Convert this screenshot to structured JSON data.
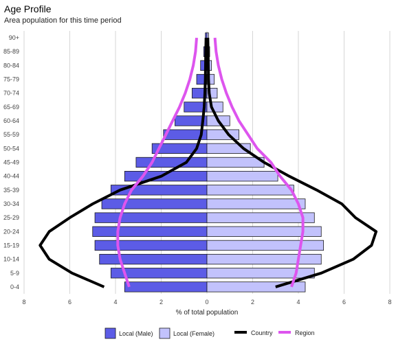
{
  "title": "Age Profile",
  "subtitle": "Area population for this time period",
  "chart_data": {
    "type": "bar",
    "orientation": "horizontal",
    "layout": "population-pyramid",
    "categories": [
      "0-4",
      "5-9",
      "10-14",
      "15-19",
      "20-24",
      "25-29",
      "30-34",
      "35-39",
      "40-44",
      "45-49",
      "50-54",
      "55-59",
      "60-64",
      "65-69",
      "70-74",
      "75-79",
      "80-84",
      "85-89",
      "90+"
    ],
    "xlabel": "% of total population",
    "xlim": [
      -8,
      8
    ],
    "xticks": [
      -8,
      -6,
      -4,
      -2,
      0,
      2,
      4,
      6,
      8
    ],
    "xtick_labels": [
      "8",
      "6",
      "4",
      "2",
      "0",
      "2",
      "4",
      "6",
      "8"
    ],
    "grid": true,
    "legend_position": "bottom",
    "series": [
      {
        "name": "Local (Male)",
        "kind": "bar",
        "side": "left",
        "color": "#5c5ce6",
        "values": [
          3.6,
          4.2,
          4.7,
          4.9,
          5.0,
          4.9,
          4.6,
          4.2,
          3.6,
          3.1,
          2.4,
          1.9,
          1.4,
          1.0,
          0.65,
          0.45,
          0.28,
          0.14,
          0.07
        ]
      },
      {
        "name": "Local (Female)",
        "kind": "bar",
        "side": "right",
        "color": "#c2c2fc",
        "values": [
          4.3,
          4.7,
          5.0,
          5.1,
          5.0,
          4.7,
          4.3,
          3.8,
          3.1,
          2.5,
          1.9,
          1.4,
          1.0,
          0.7,
          0.45,
          0.32,
          0.2,
          0.12,
          0.07
        ]
      },
      {
        "name": "Country",
        "kind": "line",
        "color": "#000000",
        "left": [
          4.5,
          5.9,
          6.9,
          7.3,
          6.9,
          6.0,
          5.0,
          3.8,
          2.0,
          0.9,
          0.45,
          0.25,
          0.18,
          0.12,
          0.09,
          0.07,
          0.06,
          0.05,
          0.04
        ],
        "right": [
          3.0,
          5.0,
          6.4,
          7.2,
          7.4,
          6.5,
          5.9,
          4.8,
          3.6,
          2.5,
          1.6,
          0.95,
          0.5,
          0.2,
          0.1,
          0.07,
          0.06,
          0.05,
          0.04
        ]
      },
      {
        "name": "Region",
        "kind": "line",
        "color": "#dd55ee",
        "left": [
          3.4,
          3.6,
          3.8,
          3.9,
          3.9,
          3.8,
          3.6,
          3.3,
          2.8,
          2.4,
          2.1,
          1.8,
          1.5,
          1.2,
          0.95,
          0.75,
          0.6,
          0.5,
          0.45
        ],
        "right": [
          3.7,
          3.9,
          4.0,
          4.1,
          4.2,
          4.2,
          4.0,
          3.7,
          3.2,
          2.8,
          2.2,
          1.8,
          1.4,
          1.1,
          0.85,
          0.65,
          0.5,
          0.4,
          0.35
        ]
      }
    ]
  }
}
